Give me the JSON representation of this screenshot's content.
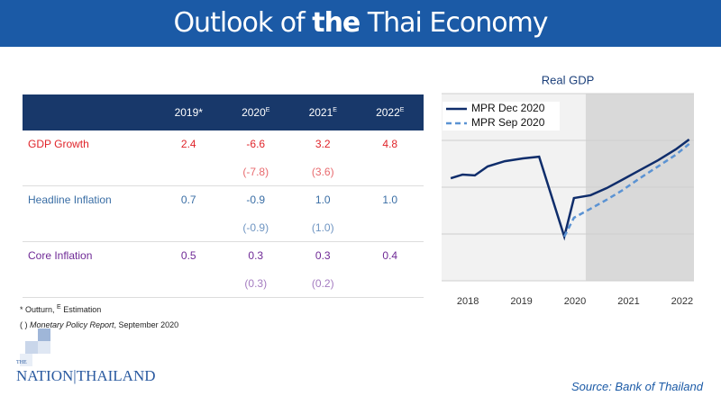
{
  "header": {
    "title": [
      "Outlook of ",
      "the",
      " Thai Economy"
    ]
  },
  "table": {
    "columns": [
      {
        "text": "2019*"
      },
      {
        "text": "2020",
        "sup": "E"
      },
      {
        "text": "2021",
        "sup": "E"
      },
      {
        "text": "2022",
        "sup": "E"
      }
    ],
    "rows": [
      {
        "label": "GDP Growth",
        "cells": [
          "2.4",
          "-6.6",
          "3.2",
          "4.8"
        ],
        "color": "#e0242a"
      },
      {
        "cells": [
          null,
          "(-7.8)",
          "(3.6)",
          null
        ],
        "color": "#e86a6e"
      },
      {
        "label": "Headline Inflation",
        "cells": [
          "0.7",
          "-0.9",
          "1.0",
          "1.0"
        ],
        "color": "#3a6ea5"
      },
      {
        "cells": [
          null,
          "(-0.9)",
          "(1.0)",
          null
        ],
        "color": "#6f95c2"
      },
      {
        "label": "Core Inflation",
        "cells": [
          "0.5",
          "0.3",
          "0.3",
          "0.4"
        ],
        "color": "#6f2a96"
      },
      {
        "cells": [
          null,
          "(0.3)",
          "(0.2)",
          null
        ],
        "color": "#a47cc0"
      }
    ]
  },
  "footnotes": {
    "line1": [
      "* Outturn, ",
      "E",
      " Estimation"
    ],
    "line2": [
      "( ) ",
      "Monetary Policy Report",
      ", September 2020"
    ]
  },
  "logo": {
    "small": "THE",
    "left": "NATION",
    "right": "THAILAND"
  },
  "source": "Source: Bank of Thailand",
  "chart_data": {
    "type": "line",
    "title": "Real GDP",
    "x": [
      2017.68,
      2017.9,
      2018.13,
      2018.37,
      2018.69,
      2019.03,
      2019.33,
      2019.8,
      2019.98,
      2020.29,
      2020.59,
      2020.87,
      2021.21,
      2021.55,
      2021.88,
      2022.13
    ],
    "series": [
      {
        "name": "MPR Dec 2020",
        "color": "#0f2d6b",
        "dash": false,
        "values": [
          54.8,
          56.7,
          56.3,
          61.1,
          63.9,
          65.4,
          66.3,
          23.6,
          44.2,
          45.7,
          49.5,
          53.8,
          59.1,
          64.4,
          70.2,
          75.5
        ]
      },
      {
        "name": "MPR Sep 2020",
        "color": "#5b93d3",
        "dash": true,
        "values": [
          null,
          null,
          null,
          null,
          null,
          null,
          null,
          23.6,
          33.7,
          38.5,
          43.3,
          48.1,
          54.8,
          61.1,
          67.3,
          73.1
        ]
      }
    ],
    "xlim": [
      2017.51,
      2022.22
    ],
    "xticks": [
      2018,
      2019,
      2020,
      2021,
      2022
    ],
    "ylim": [
      0,
      100
    ],
    "yticks": [
      0,
      25,
      50,
      75,
      100
    ],
    "grid": true,
    "shade_from": 2020.2,
    "legend": "upper-left"
  }
}
